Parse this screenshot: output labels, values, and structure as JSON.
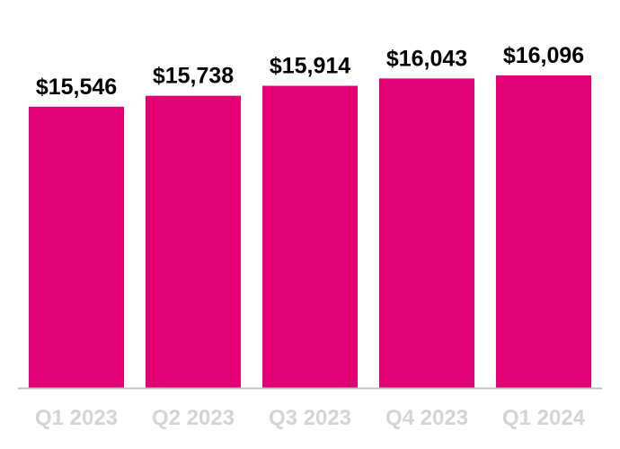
{
  "chart_data": {
    "type": "bar",
    "title": "",
    "xlabel": "",
    "ylabel": "",
    "categories": [
      "Q1 2023",
      "Q2 2023",
      "Q3 2023",
      "Q4 2023",
      "Q1 2024"
    ],
    "values": [
      15546,
      15738,
      15914,
      16043,
      16096
    ],
    "value_labels": [
      "$15,546",
      "$15,738",
      "$15,914",
      "$16,043",
      "$16,096"
    ],
    "ylim": [
      10600,
      16096
    ],
    "grid": false,
    "legend": "none",
    "colors": {
      "bar": "#e20074",
      "axis": "#bfbfbf",
      "tick_label": "#d4d4d4",
      "value_label": "#000000"
    }
  }
}
